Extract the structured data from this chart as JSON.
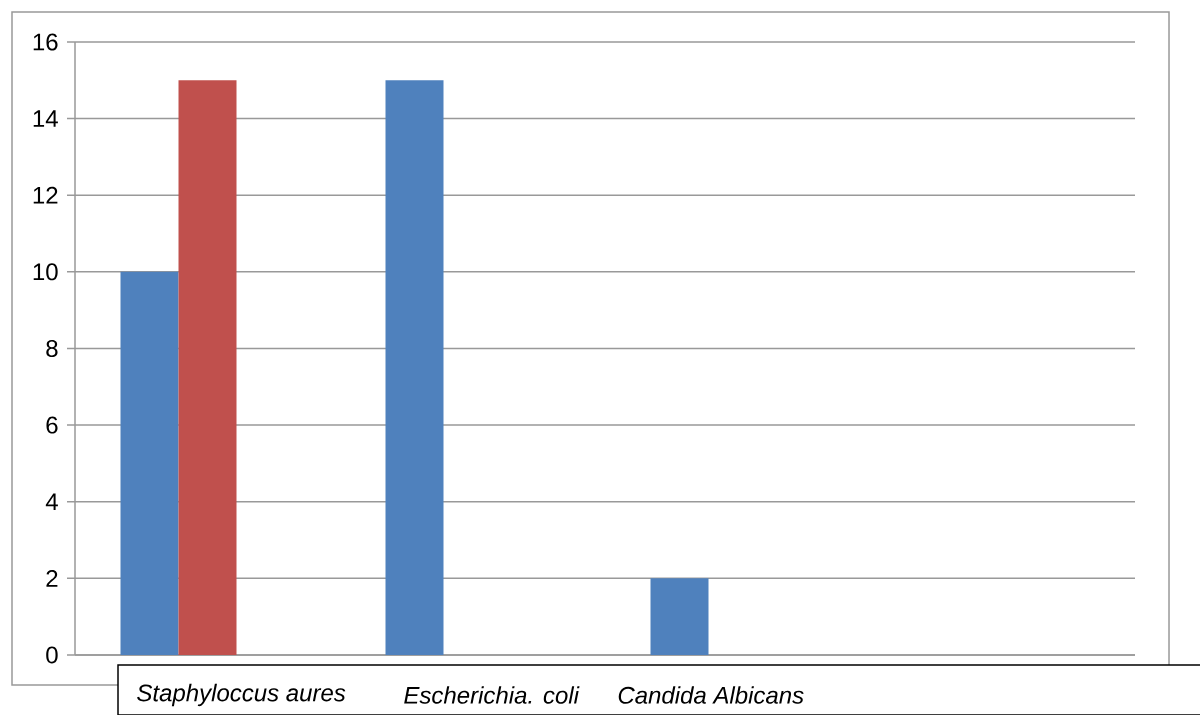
{
  "chart_data": {
    "type": "bar",
    "categories": [
      null,
      null,
      null,
      null
    ],
    "series": [
      {
        "color": "#4f81bd",
        "values": [
          10,
          15,
          2,
          null
        ]
      },
      {
        "color": "#c0504d",
        "values": [
          15,
          null,
          null,
          null
        ]
      }
    ],
    "ylim": [
      0,
      16
    ],
    "yticks": [
      0,
      2,
      4,
      6,
      8,
      10,
      12,
      14,
      16
    ],
    "grid": "y",
    "annotations": [
      "Staphyloccus aures",
      "Escherichia. coli",
      "Candida Albicans"
    ]
  }
}
